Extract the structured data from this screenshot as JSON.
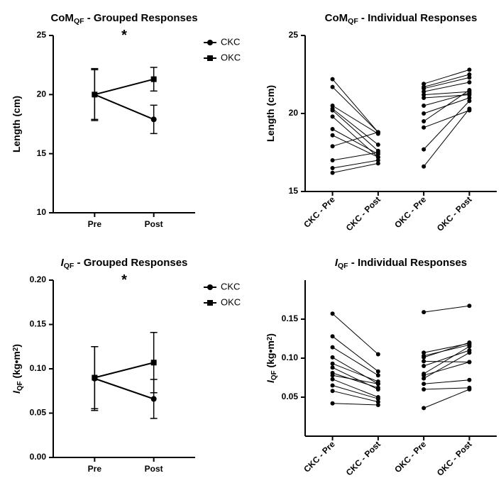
{
  "colors": {
    "bg": "#ffffff",
    "axis": "#000000",
    "series": "#000000",
    "text": "#000000"
  },
  "font": {
    "title": 15,
    "axis_label": 14,
    "tick": 12,
    "legend": 13
  },
  "line_width": {
    "axis": 2,
    "series": 2,
    "error": 1.5,
    "individual": 1
  },
  "marker": {
    "circle_r": 4,
    "square_s": 8,
    "indiv_r": 3
  },
  "panels": {
    "tl": {
      "title_pre": "CoM",
      "title_sub": "QF",
      "title_post": " - Grouped Responses",
      "ylabel": "Length (cm)",
      "ylim": [
        10,
        25
      ],
      "yticks": [
        10,
        15,
        20,
        25
      ],
      "xcats": [
        "Pre",
        "Post"
      ],
      "legend": [
        {
          "label": "CKC",
          "marker": "circle"
        },
        {
          "label": "OKC",
          "marker": "square"
        }
      ],
      "sig": "*",
      "series": {
        "CKC": {
          "marker": "circle",
          "y": [
            20.0,
            17.9
          ],
          "err": [
            2.2,
            1.2
          ]
        },
        "OKC": {
          "marker": "square",
          "y": [
            20.0,
            21.3
          ],
          "err": [
            2.1,
            1.0
          ]
        }
      }
    },
    "tr": {
      "title_pre": "CoM",
      "title_sub": "QF",
      "title_post": " - Individual Responses",
      "ylabel": "Length (cm)",
      "ylim": [
        15,
        25
      ],
      "yticks": [
        15,
        20,
        25
      ],
      "xcats": [
        "CKC - Pre",
        "CKC - Post",
        "OKC - Pre",
        "OKC - Post"
      ],
      "groups": [
        {
          "x": [
            0,
            1
          ],
          "lines": [
            [
              22.2,
              18.8
            ],
            [
              21.7,
              18.8
            ],
            [
              20.5,
              18.7
            ],
            [
              20.3,
              18.0
            ],
            [
              20.2,
              17.6
            ],
            [
              19.8,
              17.2
            ],
            [
              19.0,
              17.4
            ],
            [
              18.6,
              17.2
            ],
            [
              17.9,
              18.8
            ],
            [
              17.0,
              17.5
            ],
            [
              16.5,
              17.0
            ],
            [
              16.2,
              16.8
            ]
          ]
        },
        {
          "x": [
            2,
            3
          ],
          "lines": [
            [
              21.9,
              22.8
            ],
            [
              21.7,
              22.5
            ],
            [
              21.6,
              22.3
            ],
            [
              21.4,
              22.0
            ],
            [
              21.2,
              21.4
            ],
            [
              21.0,
              21.2
            ],
            [
              20.5,
              21.3
            ],
            [
              20.0,
              21.0
            ],
            [
              19.5,
              21.5
            ],
            [
              19.1,
              20.2
            ],
            [
              17.7,
              20.8
            ],
            [
              16.6,
              20.3
            ]
          ]
        }
      ]
    },
    "bl": {
      "title_pre_italic": "I",
      "title_sub": "QF",
      "title_post": " - Grouped Responses",
      "ylabel_pre_italic": "I",
      "ylabel_sub": "QF",
      "ylabel_post": " (kg•m",
      "ylabel_sup": "2",
      "ylabel_end": ")",
      "ylim": [
        0,
        0.2
      ],
      "yticks": [
        0.0,
        0.05,
        0.1,
        0.15,
        0.2
      ],
      "xcats": [
        "Pre",
        "Post"
      ],
      "legend": [
        {
          "label": "CKC",
          "marker": "circle"
        },
        {
          "label": "OKC",
          "marker": "square"
        }
      ],
      "sig": "*",
      "series": {
        "CKC": {
          "marker": "circle",
          "y": [
            0.089,
            0.066
          ],
          "err": [
            0.036,
            0.022
          ]
        },
        "OKC": {
          "marker": "square",
          "y": [
            0.09,
            0.107
          ],
          "err": [
            0.035,
            0.034
          ]
        }
      }
    },
    "br": {
      "title_pre_italic": "I",
      "title_sub": "QF",
      "title_post": " - Individual Responses",
      "ylabel_pre_italic": "I",
      "ylabel_sub": "QF",
      "ylabel_post": " (kg•m",
      "ylabel_sup": "2",
      "ylabel_end": ")",
      "ylim": [
        0,
        0.2
      ],
      "yticks": [
        0.05,
        0.1,
        0.15
      ],
      "xcats": [
        "CKC - Pre",
        "CKC - Post",
        "OKC - Pre",
        "OKC - Post"
      ],
      "groups": [
        {
          "x": [
            0,
            1
          ],
          "lines": [
            [
              0.157,
              0.105
            ],
            [
              0.128,
              0.083
            ],
            [
              0.114,
              0.078
            ],
            [
              0.101,
              0.067
            ],
            [
              0.093,
              0.07
            ],
            [
              0.088,
              0.06
            ],
            [
              0.081,
              0.062
            ],
            [
              0.078,
              0.067
            ],
            [
              0.073,
              0.05
            ],
            [
              0.065,
              0.048
            ],
            [
              0.058,
              0.044
            ],
            [
              0.042,
              0.04
            ]
          ]
        },
        {
          "x": [
            2,
            3
          ],
          "lines": [
            [
              0.159,
              0.167
            ],
            [
              0.107,
              0.119
            ],
            [
              0.103,
              0.117
            ],
            [
              0.101,
              0.12
            ],
            [
              0.096,
              0.095
            ],
            [
              0.09,
              0.11
            ],
            [
              0.08,
              0.115
            ],
            [
              0.078,
              0.095
            ],
            [
              0.074,
              0.107
            ],
            [
              0.067,
              0.072
            ],
            [
              0.06,
              0.062
            ],
            [
              0.036,
              0.06
            ]
          ]
        }
      ]
    }
  }
}
